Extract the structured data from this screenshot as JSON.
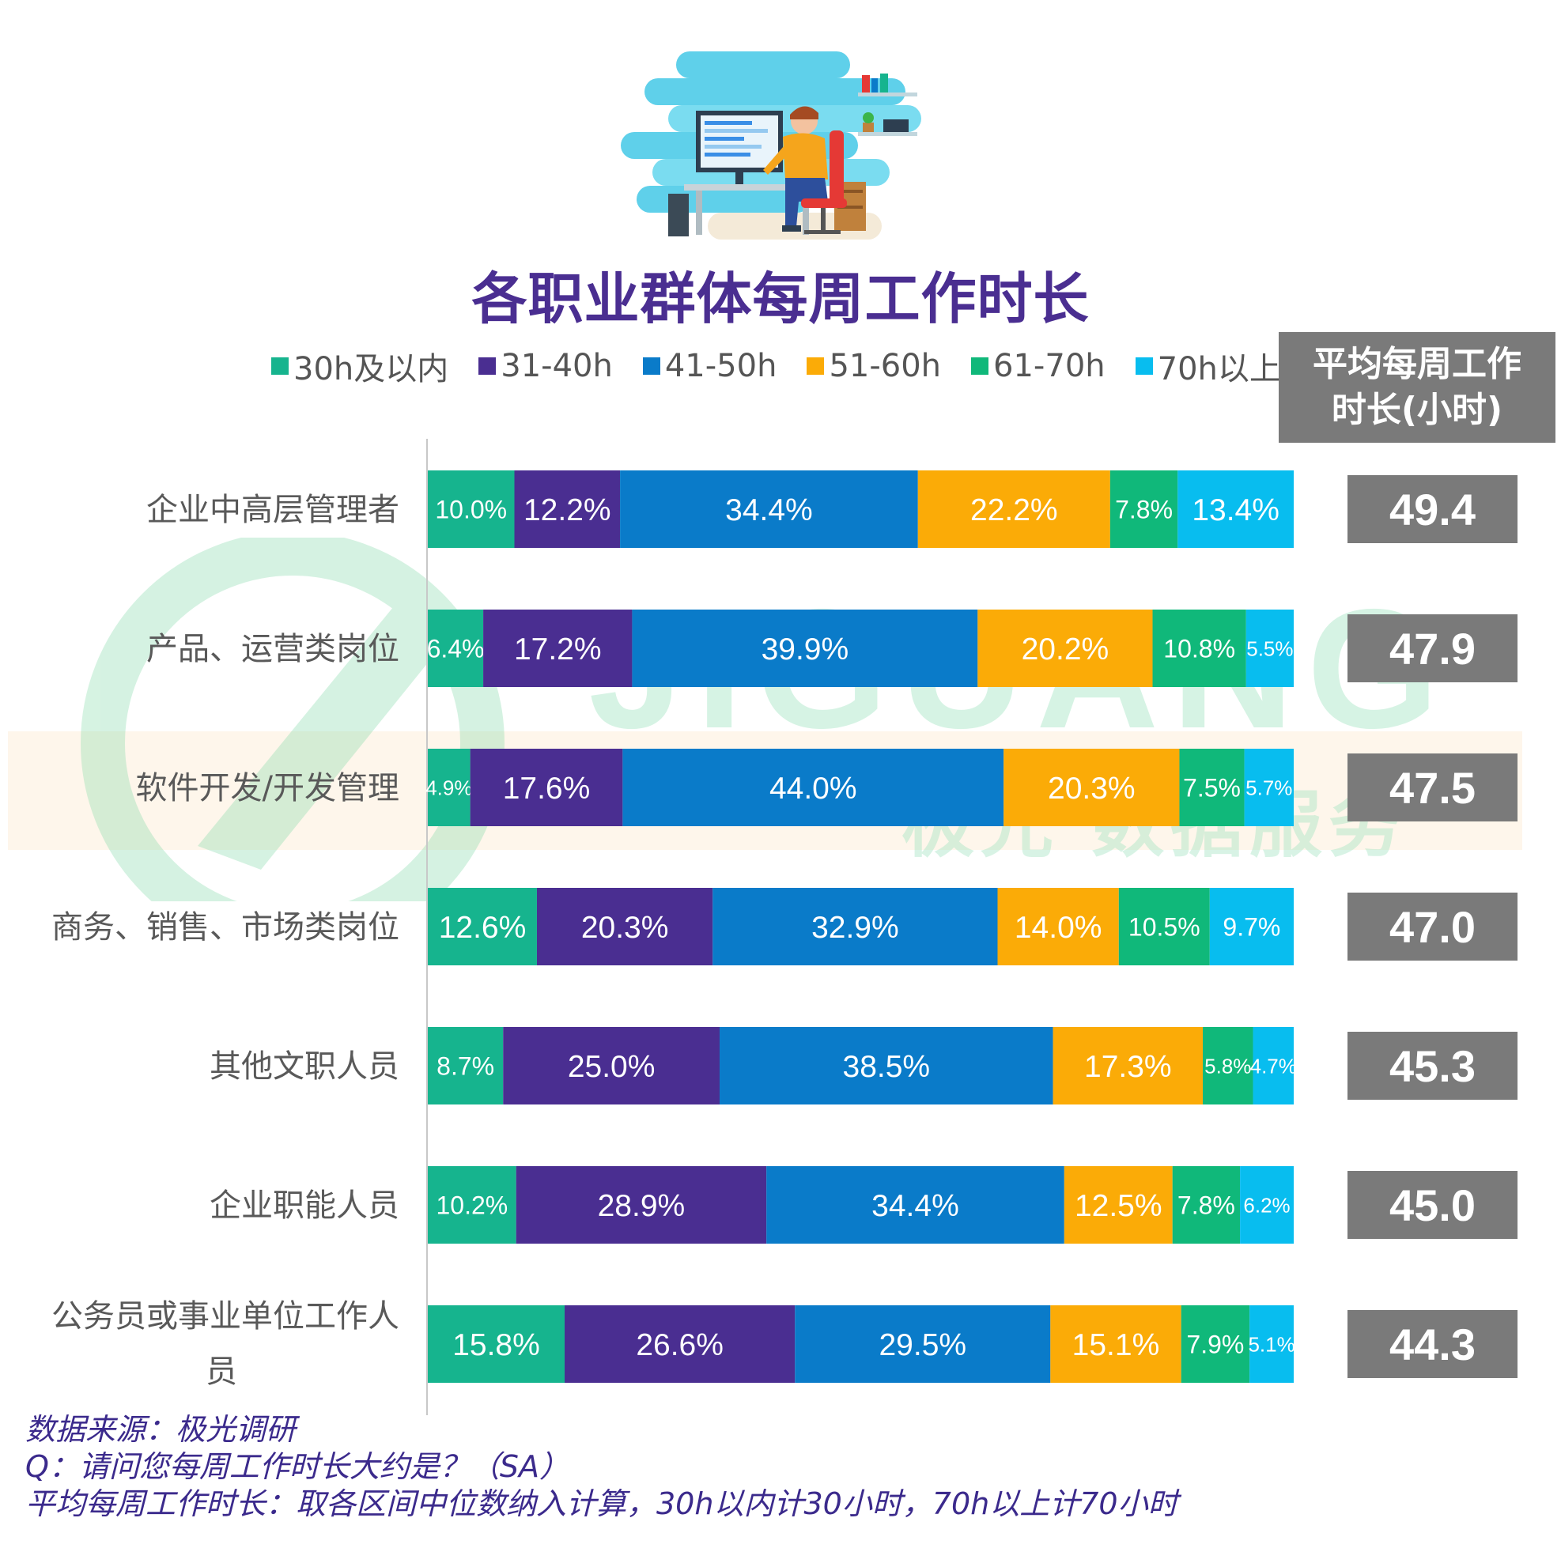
{
  "chart_data": {
    "type": "bar",
    "stacked": true,
    "orientation": "horizontal",
    "title": "各职业群体每周工作时长",
    "legend_position": "top",
    "series_colors": [
      "#16b48e",
      "#4a2e91",
      "#0a7bc9",
      "#fbab07",
      "#10b87a",
      "#08bdef"
    ],
    "series": [
      {
        "name": "30h及以内",
        "values": [
          10.0,
          6.4,
          4.9,
          12.6,
          8.7,
          10.2,
          15.8
        ],
        "labels": [
          "10.0%",
          "6.4%",
          "4.9%",
          "12.6%",
          "8.7%",
          "10.2%",
          "15.8%"
        ]
      },
      {
        "name": "31-40h",
        "values": [
          12.2,
          17.2,
          17.6,
          20.3,
          25.0,
          28.9,
          26.6
        ],
        "labels": [
          "12.2%",
          "17.2%",
          "17.6%",
          "20.3%",
          "25.0%",
          "28.9%",
          "26.6%"
        ]
      },
      {
        "name": "41-50h",
        "values": [
          34.4,
          39.9,
          44.0,
          32.9,
          38.5,
          34.4,
          29.5
        ],
        "labels": [
          "34.4%",
          "39.9%",
          "44.0%",
          "32.9%",
          "38.5%",
          "34.4%",
          "29.5%"
        ]
      },
      {
        "name": "51-60h",
        "values": [
          22.2,
          20.2,
          20.3,
          14.0,
          17.3,
          12.5,
          15.1
        ],
        "labels": [
          "22.2%",
          "20.2%",
          "20.3%",
          "14.0%",
          "17.3%",
          "12.5%",
          "15.1%"
        ]
      },
      {
        "name": "61-70h",
        "values": [
          7.8,
          10.8,
          7.5,
          10.5,
          5.8,
          7.8,
          7.9
        ],
        "labels": [
          "7.8%",
          "10.8%",
          "7.5%",
          "10.5%",
          "5.8%",
          "7.8%",
          "7.9%"
        ]
      },
      {
        "name": "70h以上",
        "values": [
          13.4,
          5.5,
          5.7,
          9.7,
          4.7,
          6.2,
          5.1
        ],
        "labels": [
          "13.4%",
          "5.5%",
          "5.7%",
          "9.7%",
          "4.7%",
          "6.2%",
          "5.1%"
        ]
      }
    ],
    "categories": [
      {
        "lines": [
          "企业中高层管理者"
        ]
      },
      {
        "lines": [
          "产品、运营类岗位"
        ]
      },
      {
        "lines": [
          "软件开发/开发管理"
        ]
      },
      {
        "lines": [
          "商务、销售、市场类岗位"
        ]
      },
      {
        "lines": [
          "其他文职人员"
        ]
      },
      {
        "lines": [
          "企业职能人员"
        ]
      },
      {
        "lines": [
          "公务员或事业单位工作人",
          "员"
        ]
      }
    ],
    "avg_header": [
      "平均每周工作",
      "时长(小时)"
    ],
    "avg_values": [
      "49.4",
      "47.9",
      "47.5",
      "47.0",
      "45.3",
      "45.0",
      "44.3"
    ]
  },
  "watermark": {
    "brand": "JIGUANG",
    "tagline": "极光 数据服务"
  },
  "notes": [
    "数据来源：极光调研",
    "Q：请问您每周工作时长大约是？（SA）",
    "平均每周工作时长：取各区间中位数纳入计算，30h以内计30小时，70h以上计70小时"
  ]
}
